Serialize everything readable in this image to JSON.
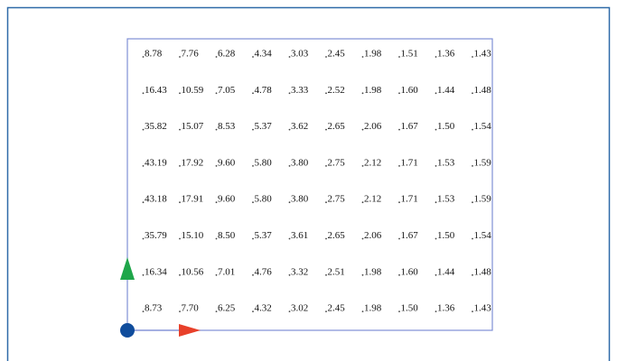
{
  "grid": {
    "rows": [
      [
        "8.78",
        "7.76",
        "6.28",
        "4.34",
        "3.03",
        "2.45",
        "1.98",
        "1.51",
        "1.36",
        "1.43"
      ],
      [
        "16.43",
        "10.59",
        "7.05",
        "4.78",
        "3.33",
        "2.52",
        "1.98",
        "1.60",
        "1.44",
        "1.48"
      ],
      [
        "35.82",
        "15.07",
        "8.53",
        "5.37",
        "3.62",
        "2.65",
        "2.06",
        "1.67",
        "1.50",
        "1.54"
      ],
      [
        "43.19",
        "17.92",
        "9.60",
        "5.80",
        "3.80",
        "2.75",
        "2.12",
        "1.71",
        "1.53",
        "1.59"
      ],
      [
        "43.18",
        "17.91",
        "9.60",
        "5.80",
        "3.80",
        "2.75",
        "2.12",
        "1.71",
        "1.53",
        "1.59"
      ],
      [
        "35.79",
        "15.10",
        "8.50",
        "5.37",
        "3.61",
        "2.65",
        "2.06",
        "1.67",
        "1.50",
        "1.54"
      ],
      [
        "16.34",
        "10.56",
        "7.01",
        "4.76",
        "3.32",
        "2.51",
        "1.98",
        "1.60",
        "1.44",
        "1.48"
      ],
      [
        "8.73",
        "7.70",
        "6.25",
        "4.32",
        "3.02",
        "2.45",
        "1.98",
        "1.50",
        "1.36",
        "1.43"
      ]
    ]
  }
}
